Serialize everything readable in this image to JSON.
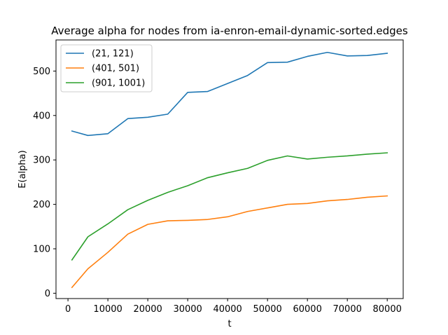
{
  "chart_data": {
    "type": "line",
    "title": "Average alpha for nodes from ia-enron-email-dynamic-sorted.edges",
    "xlabel": "t",
    "ylabel": "E(alpha)",
    "xlim": [
      -3000,
      84000
    ],
    "ylim": [
      -12,
      570
    ],
    "xticks": [
      0,
      10000,
      20000,
      30000,
      40000,
      50000,
      60000,
      70000,
      80000
    ],
    "yticks": [
      0,
      100,
      200,
      300,
      400,
      500
    ],
    "grid": false,
    "legend_position": "upper left",
    "x": [
      1000,
      5000,
      10000,
      15000,
      20000,
      25000,
      30000,
      35000,
      40000,
      45000,
      50000,
      55000,
      60000,
      65000,
      70000,
      75000,
      80000
    ],
    "series": [
      {
        "name": "(21, 121)",
        "color": "#1f77b4",
        "values": [
          365,
          355,
          359,
          393,
          396,
          403,
          452,
          454,
          472,
          490,
          519,
          520,
          533,
          542,
          534,
          535,
          540
        ]
      },
      {
        "name": "(401, 501)",
        "color": "#ff7f0e",
        "values": [
          13,
          55,
          92,
          133,
          155,
          163,
          164,
          166,
          172,
          184,
          192,
          200,
          202,
          208,
          211,
          216,
          219
        ]
      },
      {
        "name": "(901, 1001)",
        "color": "#2ca02c",
        "values": [
          75,
          127,
          156,
          188,
          209,
          227,
          242,
          260,
          271,
          281,
          299,
          309,
          302,
          306,
          309,
          313,
          316
        ]
      }
    ]
  }
}
